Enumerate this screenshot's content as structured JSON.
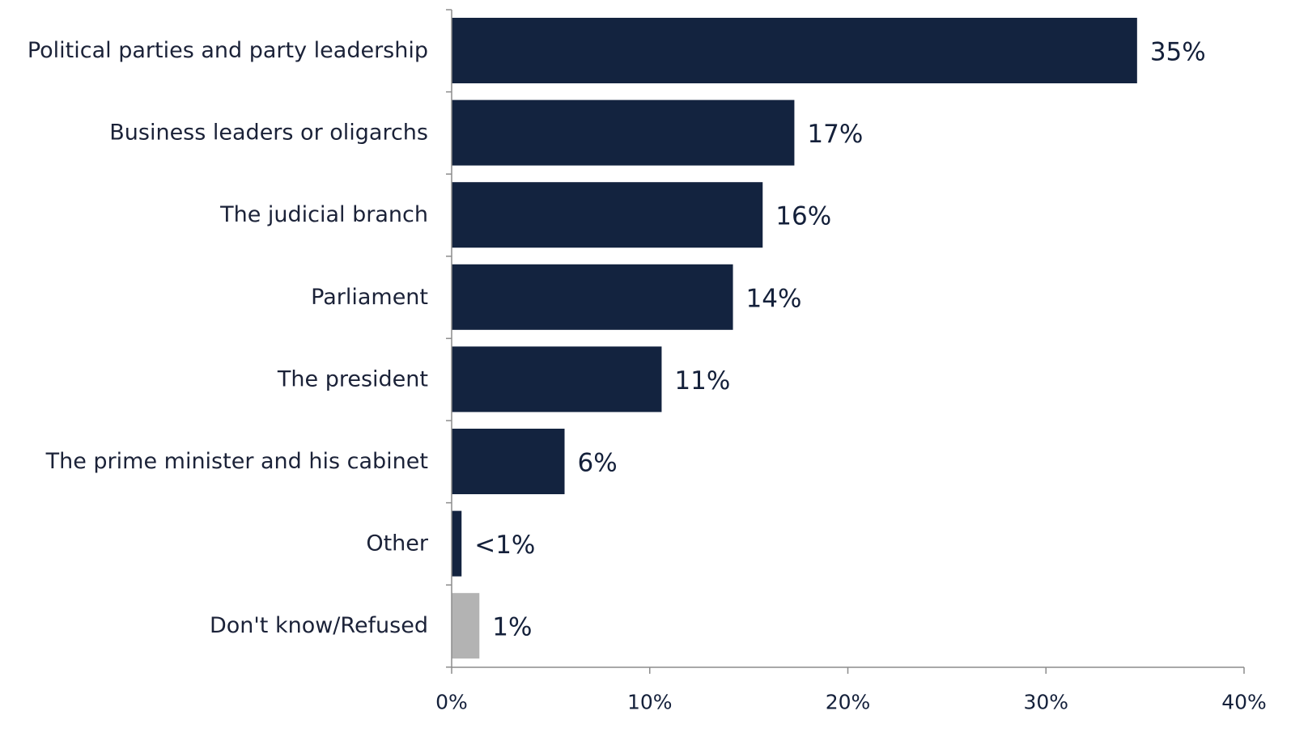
{
  "chart_data": {
    "type": "bar",
    "orientation": "horizontal",
    "categories": [
      "Political parties and party leadership",
      "Business leaders or oligarchs",
      "The judicial branch",
      "Parliament",
      "The president",
      "The prime minister and his cabinet",
      "Other",
      "Don't know/Refused"
    ],
    "values": [
      34.6,
      17.3,
      15.7,
      14.2,
      10.6,
      5.7,
      0.5,
      1.4
    ],
    "value_labels": [
      "35%",
      "17%",
      "16%",
      "14%",
      "11%",
      "6%",
      "<1%",
      "1%"
    ],
    "bar_colors": [
      "#13233f",
      "#13233f",
      "#13233f",
      "#13233f",
      "#13233f",
      "#13233f",
      "#13233f",
      "#b3b3b3"
    ],
    "xlim": [
      0,
      40
    ],
    "x_ticks": [
      0,
      10,
      20,
      30,
      40
    ],
    "x_tick_labels": [
      "0%",
      "10%",
      "20%",
      "30%",
      "40%"
    ],
    "grid": false,
    "legend": "none"
  }
}
